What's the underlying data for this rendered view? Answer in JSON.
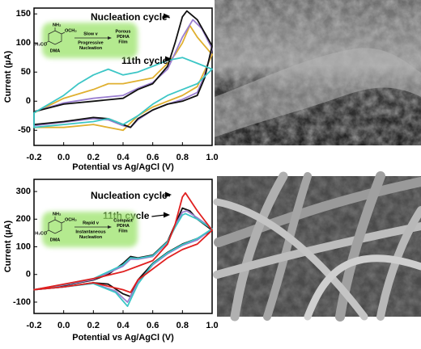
{
  "chart_data": [
    {
      "type": "line",
      "xlabel": "Potential vs Ag/AgCl (V)",
      "ylabel": "Current (µA)",
      "xlim": [
        -0.2,
        1.0
      ],
      "xticks": [
        -0.2,
        {
          "value": 0,
          "label": "0.0"
        },
        0.2,
        0.4,
        0.6,
        0.8,
        {
          "value": 1,
          "label": "1.0"
        }
      ],
      "ylim": [
        -76,
        160
      ],
      "yticks": [
        -50,
        0,
        50,
        100,
        150
      ],
      "annotations": [
        "Nucleation cycle",
        "11th cycle"
      ],
      "inset": {
        "substituents": [
          "NH₂",
          "OCH₃",
          "H₃CO"
        ],
        "compound": "DMA",
        "rate": "Slow v",
        "mechanism": [
          "Progressive",
          "Nucleation"
        ],
        "film": [
          "Porous",
          "PDHA",
          "Film"
        ]
      },
      "series": [
        {
          "color": "#e0b030",
          "x": [
            -0.2,
            0,
            0.2,
            0.3,
            0.4,
            0.5,
            0.6,
            0.7,
            0.75,
            0.8,
            0.85,
            0.9,
            1.0,
            0.9,
            0.8,
            0.6,
            0.5,
            0.4,
            0.2,
            0,
            -0.2
          ],
          "values": [
            -20,
            5,
            20,
            30,
            30,
            35,
            40,
            65,
            80,
            100,
            130,
            110,
            80,
            25,
            10,
            -10,
            -25,
            -50,
            -40,
            -45,
            -45
          ]
        },
        {
          "color": "#9b7fd0",
          "x": [
            -0.2,
            0,
            0.2,
            0.4,
            0.5,
            0.6,
            0.7,
            0.8,
            0.87,
            0.93,
            1.0,
            0.95,
            0.9,
            0.8,
            0.7,
            0.6,
            0.5,
            0.45,
            0.4,
            0.3,
            0.2,
            0,
            -0.2
          ],
          "values": [
            -18,
            -3,
            5,
            10,
            22,
            32,
            55,
            110,
            140,
            125,
            90,
            45,
            15,
            3,
            -5,
            -15,
            -32,
            -45,
            -42,
            -32,
            -30,
            -36,
            -42
          ]
        },
        {
          "color": "#111111",
          "x": [
            -0.2,
            0,
            0.2,
            0.4,
            0.5,
            0.6,
            0.7,
            0.75,
            0.8,
            0.83,
            0.9,
            1.0,
            0.95,
            0.9,
            0.8,
            0.7,
            0.6,
            0.5,
            0.45,
            0.4,
            0.3,
            0.2,
            0,
            -0.2
          ],
          "values": [
            -18,
            -5,
            0,
            5,
            20,
            30,
            60,
            100,
            145,
            155,
            140,
            95,
            40,
            10,
            0,
            -5,
            -15,
            -30,
            -45,
            -40,
            -30,
            -28,
            -35,
            -40
          ]
        },
        {
          "color": "#3cc6c6",
          "x": [
            -0.2,
            0,
            0.1,
            0.2,
            0.3,
            0.4,
            0.5,
            0.6,
            0.7,
            0.8,
            0.9,
            1.0,
            0.9,
            0.8,
            0.7,
            0.6,
            0.5,
            0.4,
            0.3,
            0.2,
            0,
            -0.2
          ],
          "values": [
            -20,
            10,
            30,
            45,
            55,
            45,
            50,
            60,
            70,
            75,
            65,
            55,
            30,
            20,
            10,
            -5,
            -25,
            -40,
            -30,
            -35,
            -40,
            -45
          ]
        }
      ]
    },
    {
      "type": "line",
      "xlabel": "Potential vs Ag/AgCl (V)",
      "ylabel": "Current (µA)",
      "xlim": [
        -0.2,
        1.0
      ],
      "xticks": [
        -0.2,
        {
          "value": 0,
          "label": "0.0"
        },
        0.2,
        0.4,
        0.6,
        0.8,
        {
          "value": 1,
          "label": "1.0"
        }
      ],
      "ylim": [
        -141,
        344
      ],
      "yticks": [
        -100,
        0,
        100,
        200,
        300
      ],
      "annotations": [
        "Nucleation cycle",
        "11th cycle"
      ],
      "inset": {
        "substituents": [
          "NH₂",
          "OCH₃",
          "H₃CO"
        ],
        "compound": "DMA",
        "rate": "Rapid v",
        "mechanism": [
          "Instantaneous",
          "Nucleation"
        ],
        "film": [
          "Compact",
          "PDHA",
          "Film"
        ]
      },
      "series": [
        {
          "color": "#111111",
          "x": [
            -0.2,
            0,
            0.2,
            0.3,
            0.4,
            0.45,
            0.5,
            0.6,
            0.7,
            0.75,
            0.8,
            0.85,
            0.9,
            1.0,
            0.9,
            0.8,
            0.7,
            0.6,
            0.5,
            0.45,
            0.4,
            0.3,
            0.2,
            0,
            -0.2
          ],
          "values": [
            -55,
            -40,
            -20,
            0,
            40,
            65,
            60,
            70,
            120,
            180,
            240,
            230,
            200,
            160,
            130,
            110,
            80,
            40,
            -20,
            -80,
            -70,
            -35,
            -30,
            -45,
            -55
          ]
        },
        {
          "color": "#9b7fd0",
          "x": [
            -0.2,
            0,
            0.2,
            0.4,
            0.45,
            0.5,
            0.6,
            0.7,
            0.75,
            0.8,
            0.83,
            0.9,
            1.0,
            0.9,
            0.8,
            0.7,
            0.6,
            0.5,
            0.43,
            0.35,
            0.2,
            0,
            -0.2
          ],
          "values": [
            -55,
            -38,
            -18,
            30,
            55,
            55,
            65,
            115,
            175,
            225,
            230,
            205,
            165,
            125,
            105,
            75,
            35,
            -30,
            -100,
            -60,
            -32,
            -45,
            -55
          ]
        },
        {
          "color": "#3cc6c6",
          "x": [
            -0.2,
            0,
            0.2,
            0.4,
            0.45,
            0.5,
            0.6,
            0.7,
            0.75,
            0.8,
            0.82,
            0.9,
            1.0,
            0.9,
            0.8,
            0.7,
            0.6,
            0.5,
            0.43,
            0.35,
            0.2,
            0,
            -0.2
          ],
          "values": [
            -55,
            -36,
            -15,
            35,
            60,
            58,
            68,
            118,
            170,
            215,
            220,
            200,
            165,
            130,
            108,
            78,
            38,
            -35,
            -115,
            -65,
            -33,
            -45,
            -55
          ]
        },
        {
          "color": "#e02020",
          "x": [
            -0.2,
            0,
            0.2,
            0.4,
            0.5,
            0.6,
            0.7,
            0.75,
            0.8,
            0.82,
            0.9,
            1.0,
            0.9,
            0.8,
            0.7,
            0.6,
            0.5,
            0.45,
            0.4,
            0.2,
            0,
            -0.2
          ],
          "values": [
            -55,
            -35,
            -15,
            10,
            30,
            50,
            110,
            180,
            280,
            295,
            230,
            160,
            110,
            90,
            60,
            20,
            -20,
            -65,
            -55,
            -30,
            -45,
            -55
          ]
        }
      ]
    }
  ]
}
